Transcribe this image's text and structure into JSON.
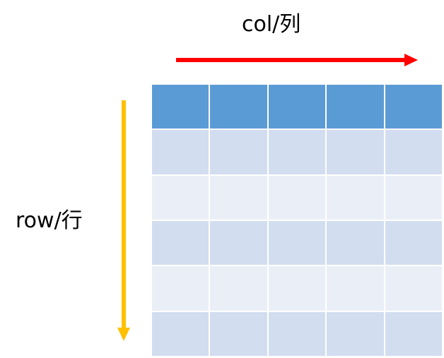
{
  "labels": {
    "col": "col/列",
    "row": "row/行"
  },
  "colors": {
    "col_arrow": "#FF0000",
    "row_arrow": "#FFC000",
    "header_cell": "#5B9BD5",
    "band_dark": "#D2DEEF",
    "band_light": "#EAEFF7"
  },
  "table": {
    "columns": 5,
    "rows": 6
  }
}
